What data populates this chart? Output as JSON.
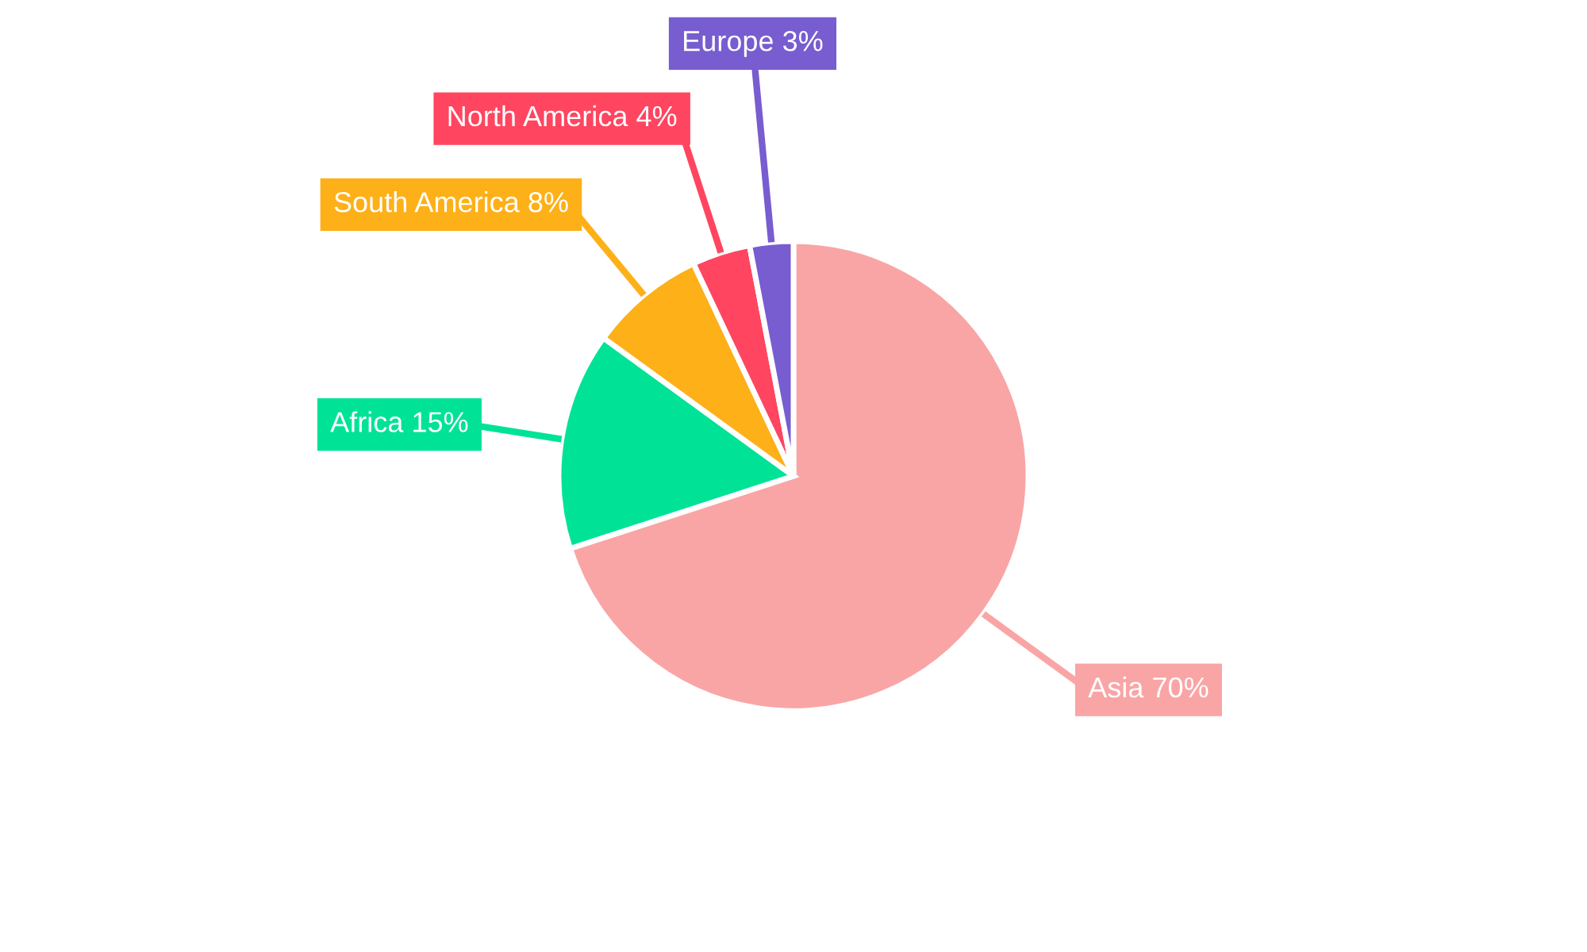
{
  "chart_data": {
    "type": "pie",
    "categories": [
      "Asia",
      "Africa",
      "South America",
      "North America",
      "Europe"
    ],
    "values": [
      70,
      15,
      8,
      4,
      3
    ],
    "colors": [
      "#f9a5a6",
      "#00e396",
      "#feb019",
      "#ff4560",
      "#775dd0"
    ],
    "value_labels": [
      "70%",
      "15%",
      "8%",
      "4%",
      "3%"
    ]
  }
}
